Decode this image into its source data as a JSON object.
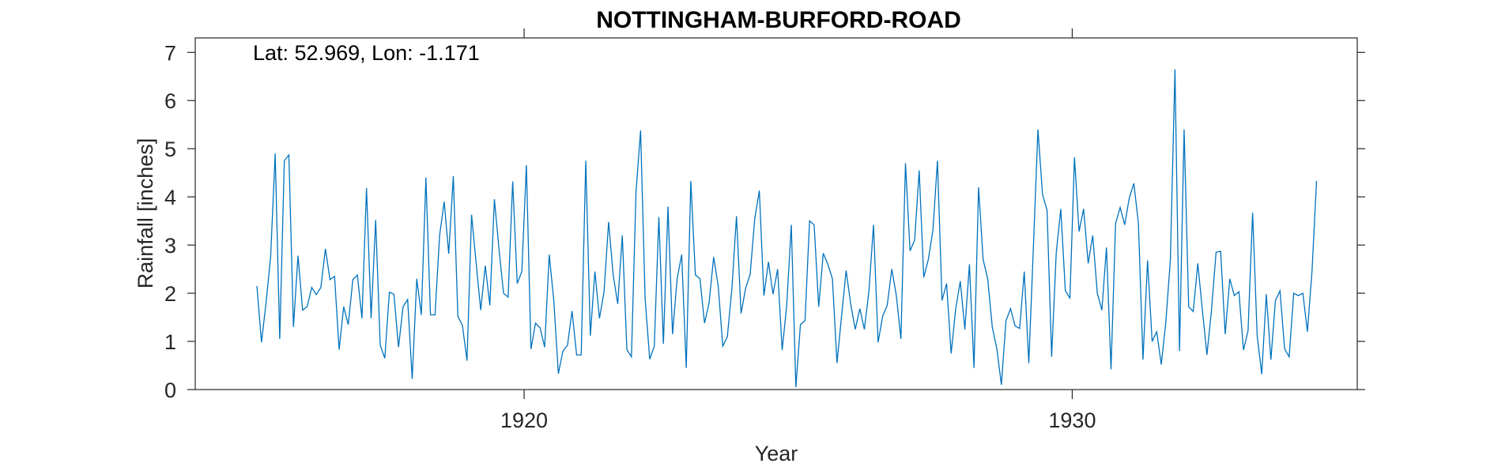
{
  "chart_data": {
    "type": "line",
    "title": "NOTTINGHAM-BURFORD-ROAD",
    "annotation": "Lat: 52.969, Lon: -1.171",
    "xlabel": "Year",
    "ylabel": "Rainfall [inches]",
    "xlim": [
      1914,
      1935.2
    ],
    "ylim": [
      0,
      7.3
    ],
    "xticks": [
      1920,
      1930
    ],
    "xtick_labels": [
      "1920",
      "1930"
    ],
    "yticks": [
      0,
      1,
      2,
      3,
      4,
      5,
      6,
      7
    ],
    "ytick_labels": [
      "0",
      "1",
      "2",
      "3",
      "4",
      "5",
      "6",
      "7"
    ],
    "grid": false,
    "line_color": "#0072BD",
    "series": [
      {
        "x_start_year": 1915.125,
        "x_step_years": 0.08333,
        "values": [
          2.15,
          0.98,
          1.8,
          2.75,
          4.9,
          1.05,
          4.75,
          4.87,
          1.3,
          2.78,
          1.65,
          1.72,
          2.12,
          1.97,
          2.12,
          2.92,
          2.28,
          2.35,
          0.83,
          1.72,
          1.35,
          2.28,
          2.38,
          1.48,
          4.18,
          1.48,
          3.52,
          0.92,
          0.65,
          2.02,
          1.98,
          0.88,
          1.72,
          1.87,
          0.22,
          2.3,
          1.55,
          4.4,
          1.55,
          1.55,
          3.2,
          3.9,
          2.82,
          4.43,
          1.52,
          1.33,
          0.6,
          3.63,
          2.62,
          1.65,
          2.57,
          1.75,
          3.95,
          2.92,
          2.0,
          1.92,
          4.32,
          2.2,
          2.45,
          4.66,
          0.84,
          1.38,
          1.28,
          0.88,
          2.8,
          1.85,
          0.33,
          0.8,
          0.92,
          1.63,
          0.72,
          0.72,
          4.75,
          1.12,
          2.45,
          1.48,
          2.03,
          3.48,
          2.38,
          1.78,
          3.2,
          0.83,
          0.68,
          4.1,
          5.38,
          1.88,
          0.63,
          0.9,
          3.58,
          0.95,
          3.8,
          1.15,
          2.3,
          2.8,
          0.45,
          4.33,
          2.38,
          2.3,
          1.38,
          1.8,
          2.75,
          2.15,
          0.9,
          1.1,
          2.1,
          3.6,
          1.58,
          2.1,
          2.4,
          3.55,
          4.13,
          1.95,
          2.65,
          1.98,
          2.5,
          0.82,
          1.75,
          3.42,
          0.05,
          1.35,
          1.43,
          3.5,
          3.42,
          1.72,
          2.83,
          2.6,
          2.3,
          0.55,
          1.52,
          2.47,
          1.78,
          1.25,
          1.68,
          1.25,
          2.05,
          3.42,
          0.98,
          1.52,
          1.75,
          2.5,
          1.95,
          1.05,
          4.7,
          2.88,
          3.1,
          4.55,
          2.33,
          2.7,
          3.3,
          4.75,
          1.85,
          2.2,
          0.75,
          1.68,
          2.25,
          1.25,
          2.6,
          0.45,
          4.2,
          2.7,
          2.3,
          1.3,
          0.85,
          0.1,
          1.43,
          1.68,
          1.32,
          1.27,
          2.45,
          0.55,
          2.95,
          5.4,
          4.05,
          3.72,
          0.68,
          2.83,
          3.75,
          2.05,
          1.9,
          4.82,
          3.28,
          3.75,
          2.62,
          3.2,
          2.0,
          1.65,
          2.95,
          0.42,
          3.45,
          3.78,
          3.42,
          3.98,
          4.28,
          3.45,
          0.62,
          2.68,
          1.0,
          1.2,
          0.52,
          1.4,
          2.7,
          6.65,
          0.8,
          5.4,
          1.72,
          1.62,
          2.62,
          1.65,
          0.72,
          1.65,
          2.85,
          2.87,
          1.15,
          2.3,
          1.95,
          2.03,
          0.82,
          1.22,
          3.67,
          1.12,
          0.32,
          1.98,
          0.62,
          1.85,
          2.05,
          0.85,
          0.68,
          2.0,
          1.95,
          2.0,
          1.2,
          2.45,
          4.33
        ]
      }
    ]
  }
}
